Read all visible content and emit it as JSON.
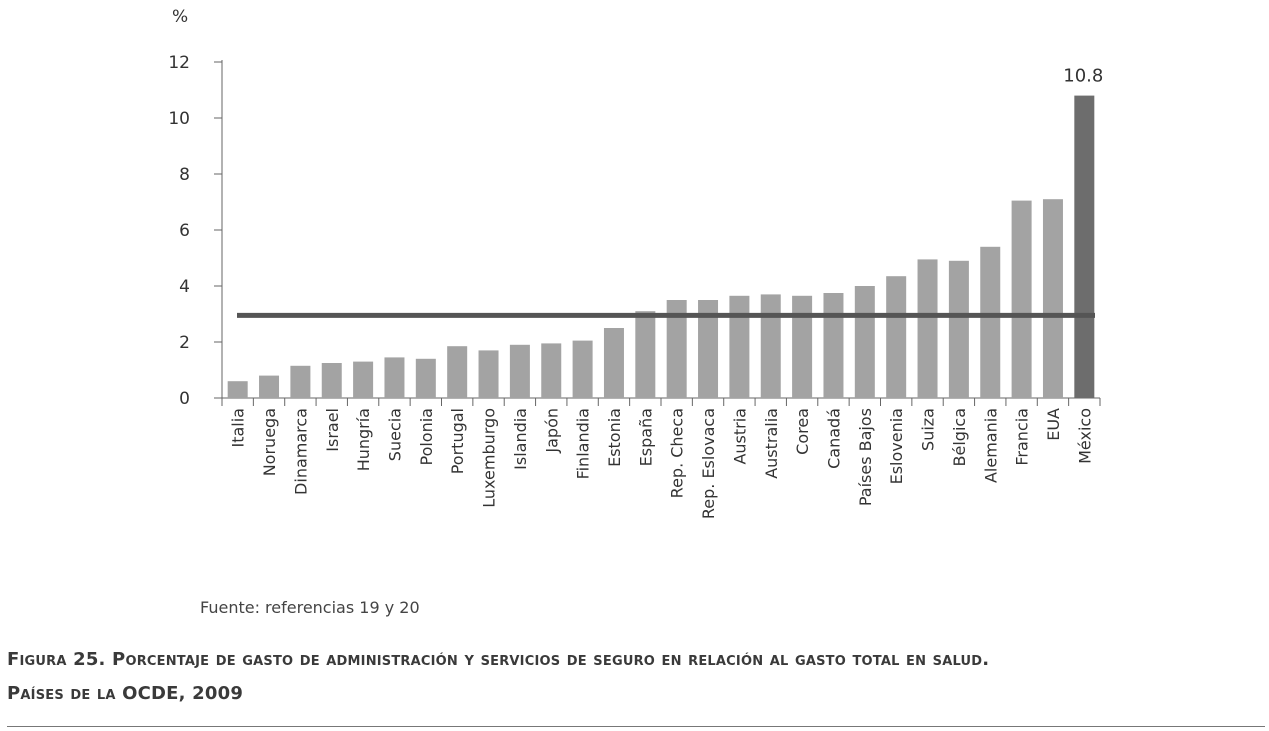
{
  "chart_data": {
    "type": "bar",
    "unit_label": "%",
    "categories": [
      "Italia",
      "Noruega",
      "Dinamarca",
      "Israel",
      "Hungría",
      "Suecia",
      "Polonia",
      "Portugal",
      "Luxemburgo",
      "Islandia",
      "Japón",
      "Finlandia",
      "Estonia",
      "España",
      "Rep. Checa",
      "Rep. Eslovaca",
      "Austria",
      "Australia",
      "Corea",
      "Canadá",
      "Países Bajos",
      "Eslovenia",
      "Suiza",
      "Bélgica",
      "Alemania",
      "Francia",
      "EUA",
      "México"
    ],
    "values": [
      0.6,
      0.8,
      1.15,
      1.25,
      1.3,
      1.45,
      1.4,
      1.85,
      1.7,
      1.9,
      1.95,
      2.05,
      2.5,
      3.1,
      3.5,
      3.5,
      3.65,
      3.7,
      3.65,
      3.75,
      4.0,
      4.35,
      4.95,
      4.9,
      5.4,
      7.05,
      7.1,
      10.8
    ],
    "highlight_category": "México",
    "highlight_label": "10.8",
    "reference_line": 2.95,
    "ylim": [
      0,
      12
    ],
    "yticks": [
      "0",
      "2",
      "4",
      "6",
      "8",
      "10",
      "12"
    ],
    "colors": {
      "bar": "#a3a3a3",
      "highlight": "#6d6d6d",
      "reference": "#555555",
      "axis": "#666666"
    }
  },
  "source": "Fuente: referencias 19 y 20",
  "caption": {
    "line1": "Figura 25. Porcentaje de gasto de administración y servicios de seguro en relación al gasto total en salud.",
    "line2": "Países de la OCDE, 2009"
  }
}
